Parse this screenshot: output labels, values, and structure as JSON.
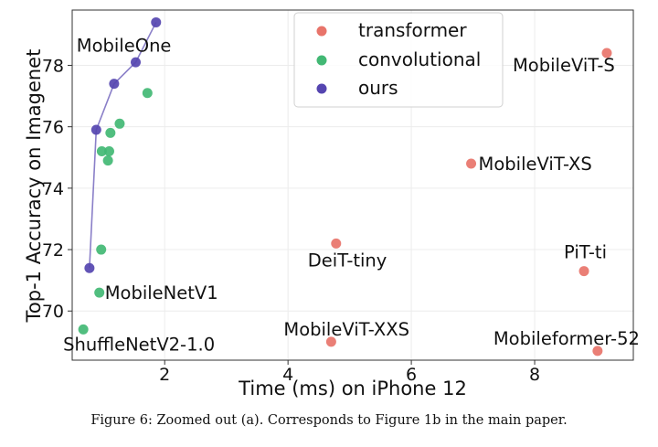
{
  "chart_data": {
    "type": "scatter",
    "title": "",
    "xlabel": "Time (ms) on iPhone 12",
    "ylabel": "Top-1 Accuracy on Imagenet",
    "xlim": [
      0.5,
      9.6
    ],
    "ylim": [
      68.4,
      79.8
    ],
    "xticks": [
      2,
      4,
      6,
      8
    ],
    "yticks": [
      70,
      72,
      74,
      76,
      78
    ],
    "grid": true,
    "legend_position": "top-center",
    "series": [
      {
        "name": "transformer",
        "color": "#e8746a",
        "points": [
          {
            "x": 9.17,
            "y": 78.4,
            "label": "MobileViT-S"
          },
          {
            "x": 6.97,
            "y": 74.8,
            "label": "MobileViT-XS"
          },
          {
            "x": 4.78,
            "y": 72.2,
            "label": "DeiT-tiny"
          },
          {
            "x": 8.8,
            "y": 71.3,
            "label": "PiT-ti"
          },
          {
            "x": 4.7,
            "y": 69.0,
            "label": "MobileViT-XXS"
          },
          {
            "x": 9.02,
            "y": 68.7,
            "label": "Mobileformer-52"
          }
        ]
      },
      {
        "name": "convolutional",
        "color": "#42b874",
        "points": [
          {
            "x": 1.72,
            "y": 77.1
          },
          {
            "x": 1.27,
            "y": 76.1
          },
          {
            "x": 1.12,
            "y": 75.8
          },
          {
            "x": 0.98,
            "y": 75.2
          },
          {
            "x": 1.1,
            "y": 75.2
          },
          {
            "x": 1.08,
            "y": 74.9
          },
          {
            "x": 0.97,
            "y": 72.0
          },
          {
            "x": 0.94,
            "y": 70.6,
            "label": "MobileNetV1"
          },
          {
            "x": 0.68,
            "y": 69.4,
            "label": "ShuffleNetV2-1.0"
          }
        ]
      },
      {
        "name": "ours",
        "color": "#5545b0",
        "line": true,
        "points": [
          {
            "x": 0.78,
            "y": 71.4
          },
          {
            "x": 0.89,
            "y": 75.9
          },
          {
            "x": 1.18,
            "y": 77.4
          },
          {
            "x": 1.53,
            "y": 78.1
          },
          {
            "x": 1.86,
            "y": 79.4
          }
        ],
        "series_label": "MobileOne"
      }
    ]
  },
  "caption": "Figure 6: Zoomed out (a). Corresponds to Figure 1b in the main paper."
}
